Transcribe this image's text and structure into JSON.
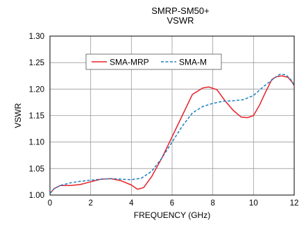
{
  "chart_data": {
    "type": "line",
    "title": "SMRP-SM50+",
    "subtitle": "VSWR",
    "xlabel": "FREQUENCY (GHz)",
    "ylabel": "VSWR",
    "xlim": [
      0,
      12
    ],
    "ylim": [
      1.0,
      1.3
    ],
    "x_ticks": [
      0,
      2,
      4,
      6,
      8,
      10,
      12
    ],
    "y_ticks": [
      1.0,
      1.05,
      1.1,
      1.15,
      1.2,
      1.25,
      1.3
    ],
    "x_tick_labels": [
      "0",
      "2",
      "4",
      "6",
      "8",
      "10",
      "12"
    ],
    "y_tick_labels": [
      "1.00",
      "1.05",
      "1.10",
      "1.15",
      "1.20",
      "1.25",
      "1.30"
    ],
    "grid": true,
    "legend_position": "top-center",
    "series": [
      {
        "name": "SMA-MRP",
        "color": "#e8202a",
        "style": "solid",
        "x": [
          0,
          0.2,
          0.5,
          1.0,
          1.5,
          2.0,
          2.5,
          3.0,
          3.5,
          4.0,
          4.3,
          4.6,
          5.0,
          5.5,
          6.0,
          6.5,
          7.0,
          7.5,
          7.8,
          8.2,
          8.6,
          9.0,
          9.4,
          9.7,
          10.0,
          10.3,
          10.6,
          10.9,
          11.1,
          11.4,
          11.7,
          11.9,
          12.0
        ],
        "y": [
          1.003,
          1.012,
          1.018,
          1.018,
          1.02,
          1.025,
          1.03,
          1.031,
          1.027,
          1.019,
          1.011,
          1.014,
          1.035,
          1.07,
          1.11,
          1.15,
          1.19,
          1.202,
          1.204,
          1.199,
          1.178,
          1.16,
          1.147,
          1.146,
          1.15,
          1.17,
          1.195,
          1.218,
          1.223,
          1.225,
          1.222,
          1.213,
          1.206
        ]
      },
      {
        "name": "SMA-M",
        "color": "#1a7fc0",
        "style": "dashed",
        "x": [
          0,
          0.2,
          0.5,
          1.0,
          1.5,
          2.0,
          2.5,
          3.0,
          3.5,
          4.0,
          4.5,
          5.0,
          5.5,
          6.0,
          6.5,
          7.0,
          7.5,
          8.0,
          8.5,
          9.0,
          9.5,
          10.0,
          10.5,
          11.0,
          11.3,
          11.6,
          11.9,
          12.0
        ],
        "y": [
          1.003,
          1.012,
          1.018,
          1.023,
          1.026,
          1.028,
          1.03,
          1.031,
          1.03,
          1.029,
          1.032,
          1.045,
          1.07,
          1.1,
          1.13,
          1.155,
          1.167,
          1.173,
          1.177,
          1.178,
          1.18,
          1.188,
          1.205,
          1.22,
          1.228,
          1.227,
          1.215,
          1.206
        ]
      }
    ]
  }
}
